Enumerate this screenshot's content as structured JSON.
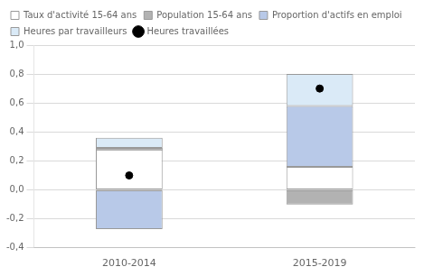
{
  "chart_data": {
    "type": "bar",
    "categories": [
      "2010-2014",
      "2015-2019"
    ],
    "series": [
      {
        "name": "Taux d'activité 15-64 ans",
        "color": "#ffffff",
        "values": [
          0.29,
          0.16
        ],
        "bottoms": [
          0.0,
          0.0
        ]
      },
      {
        "name": "Population 15-64 ans",
        "color": "#b2b2b2",
        "values": [
          0.02,
          -0.1
        ],
        "bottoms": [
          0.27,
          0.0
        ]
      },
      {
        "name": "Proportion d'actifs en emploi",
        "color": "#b8c9e8",
        "values": [
          -0.27,
          0.42
        ],
        "bottoms": [
          0.0,
          0.16
        ]
      },
      {
        "name": "Heures par travailleurs",
        "color": "#daeaf7",
        "values": [
          0.07,
          0.22
        ],
        "bottoms": [
          0.29,
          0.58
        ]
      },
      {
        "name": "Heures travaillées",
        "type": "line",
        "marker": "circle",
        "line_style": "none",
        "color": "#000000",
        "values": [
          0.1,
          0.7
        ]
      }
    ],
    "ylim": [
      -0.4,
      1.0
    ],
    "yticks": [
      {
        "value": -0.4,
        "label": "-0,4"
      },
      {
        "value": -0.2,
        "label": "-0,2"
      },
      {
        "value": 0.0,
        "label": "0,0"
      },
      {
        "value": 0.2,
        "label": "0,2"
      },
      {
        "value": 0.4,
        "label": "0,4"
      },
      {
        "value": 0.6,
        "label": "0,6"
      },
      {
        "value": 0.8,
        "label": "0,8"
      },
      {
        "value": 1.0,
        "label": "1,0"
      }
    ],
    "grid": true,
    "legend": "upper left"
  }
}
